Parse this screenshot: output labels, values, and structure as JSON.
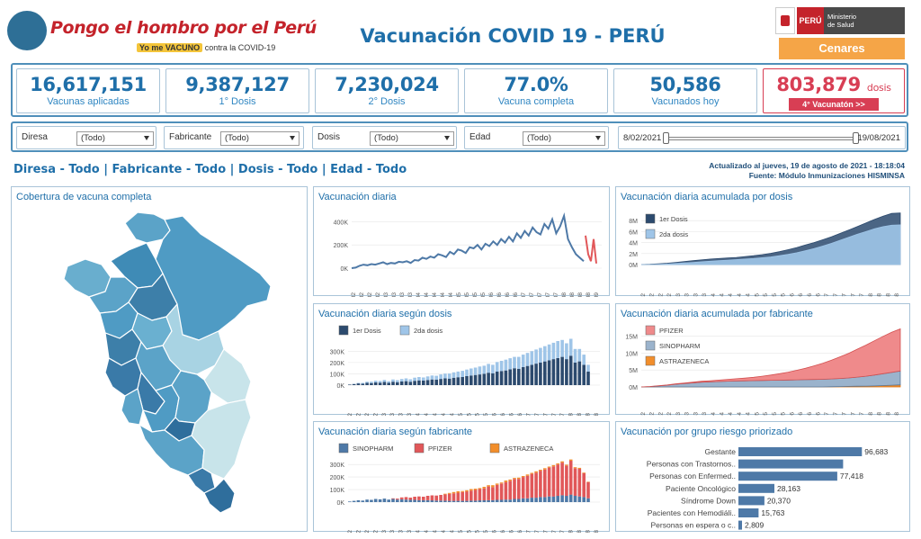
{
  "header": {
    "logo_title": "Pongo el hombro por el Perú",
    "logo_sub_highlight": "Yo me VACUNO",
    "logo_sub_rest": "contra la COVID-19",
    "title": "Vacunación COVID 19 - PERÚ",
    "ministry_peru": "PERÚ",
    "ministry_name_1": "Ministerio",
    "ministry_name_2": "de Salud",
    "cenares": "Cenares"
  },
  "kpis": [
    {
      "value": "16,617,151",
      "label": "Vacunas aplicadas"
    },
    {
      "value": "9,387,127",
      "label": "1° Dosis"
    },
    {
      "value": "7,230,024",
      "label": "2° Dosis"
    },
    {
      "value": "77.0%",
      "label": "Vacuna completa"
    },
    {
      "value": "50,586",
      "label": "Vacunados hoy"
    }
  ],
  "vacunaton": {
    "value": "803,879",
    "unit": "dosis",
    "button": "4° Vacunatón >>"
  },
  "filters": [
    {
      "label": "Diresa",
      "value": "(Todo)"
    },
    {
      "label": "Fabricante",
      "value": "(Todo)"
    },
    {
      "label": "Dosis",
      "value": "(Todo)"
    },
    {
      "label": "Edad",
      "value": "(Todo)"
    }
  ],
  "date_range": {
    "start": "8/02/2021",
    "end": "19/08/2021"
  },
  "breadcrumb": "Diresa - Todo | Fabricante - Todo | Dosis - Todo | Edad - Todo",
  "updated": {
    "line1": "Actualizado al jueves, 19 de agosto de 2021 - 18:18:04",
    "line2": "Fuente: Módulo Inmunizaciones HISMINSA"
  },
  "map": {
    "title": "Cobertura de vacuna completa"
  },
  "colors": {
    "blue_dark": "#1f6fa9",
    "line": "#4e79a7",
    "red_line": "#e15759",
    "dose1": "#2c4a6e",
    "dose2": "#9fc5e8",
    "sinopharm": "#4e79a7",
    "pfizer": "#e15759",
    "astrazeneca": "#f28e2b",
    "bar": "#4e79a7"
  },
  "x_ticks_daily": [
    "04-02",
    "12-02",
    "19-02",
    "26-02",
    "04-03",
    "11-03",
    "18-03",
    "25-03",
    "01-04",
    "08-04",
    "15-04",
    "22-04",
    "29-04",
    "06-05",
    "13-05",
    "20-05",
    "27-05",
    "03-06",
    "10-06",
    "17-06",
    "24-06",
    "01-07",
    "08-07",
    "15-07",
    "22-07",
    "29-07",
    "05-08",
    "12-08",
    "19-08",
    "26-08",
    "02-09"
  ],
  "x_ticks_stack": [
    "04-02",
    "12-02",
    "19-02",
    "26-02",
    "05-03",
    "12-03",
    "19-03",
    "26-03",
    "02-04",
    "09-04",
    "16-04",
    "23-04",
    "30-04",
    "07-05",
    "14-05",
    "21-05",
    "28-05",
    "04-06",
    "11-06",
    "18-06",
    "25-06",
    "02-07",
    "09-07",
    "16-07",
    "23-07",
    "30-07",
    "06-08",
    "13-08",
    "20-08",
    "27-08"
  ],
  "x_ticks_cum": [
    "04-02",
    "11-02",
    "18-02",
    "25-02",
    "04-03",
    "11-03",
    "18-03",
    "25-03",
    "01-04",
    "08-04",
    "15-04",
    "22-04",
    "29-04",
    "06-05",
    "13-05",
    "20-05",
    "27-05",
    "03-06",
    "10-06",
    "17-06",
    "24-06",
    "01-07",
    "08-07",
    "15-07",
    "22-07",
    "29-07",
    "05-08",
    "12-08",
    "19-08",
    "26-08"
  ],
  "chart_data": [
    {
      "type": "line",
      "title": "Vacunación diaria",
      "ylim": [
        0,
        480000
      ],
      "yticks": [
        "0K",
        "200K",
        "400K"
      ],
      "x_range": [
        "04-02",
        "02-09"
      ],
      "series": [
        {
          "values": [
            0,
            5000,
            20000,
            30000,
            25000,
            35000,
            30000,
            40000,
            50000,
            35000,
            45000,
            40000,
            55000,
            50000,
            60000,
            45000,
            70000,
            65000,
            90000,
            80000,
            100000,
            90000,
            120000,
            110000,
            95000,
            140000,
            120000,
            160000,
            150000,
            130000,
            180000,
            170000,
            200000,
            160000,
            210000,
            190000,
            230000,
            200000,
            250000,
            220000,
            270000,
            230000,
            300000,
            260000,
            320000,
            280000,
            350000,
            310000,
            290000,
            380000,
            340000,
            420000,
            300000,
            360000,
            450000,
            250000,
            180000,
            120000,
            90000,
            60000
          ]
        },
        {
          "values": [
            280000,
            120000,
            60000,
            250000,
            40000
          ]
        }
      ]
    },
    {
      "type": "area",
      "title": "Vacunación diaria acumulada por dosis",
      "ylim": [
        0,
        9500000
      ],
      "yticks": [
        "0M",
        "2M",
        "4M",
        "6M",
        "8M"
      ],
      "legend": [
        "1er Dosis",
        "2da dosis"
      ],
      "series": [
        {
          "name": "1er Dosis",
          "values": [
            0,
            50000,
            150000,
            250000,
            400000,
            550000,
            700000,
            850000,
            1000000,
            1100000,
            1200000,
            1300000,
            1450000,
            1600000,
            1800000,
            2050000,
            2350000,
            2700000,
            3100000,
            3550000,
            4000000,
            4500000,
            5050000,
            5650000,
            6250000,
            6900000,
            7550000,
            8200000,
            8800000,
            9300000,
            9387127
          ]
        },
        {
          "name": "2da dosis",
          "values": [
            0,
            0,
            30000,
            100000,
            200000,
            300000,
            400000,
            500000,
            600000,
            700000,
            800000,
            900000,
            1000000,
            1100000,
            1250000,
            1400000,
            1600000,
            1850000,
            2150000,
            2500000,
            2900000,
            3350000,
            3850000,
            4400000,
            4950000,
            5500000,
            6000000,
            6500000,
            6900000,
            7150000,
            7230024
          ]
        }
      ]
    },
    {
      "type": "bar",
      "title": "Vacunación diaria según dosis",
      "ylim": [
        0,
        430000
      ],
      "yticks": [
        "0K",
        "100K",
        "200K",
        "300K"
      ],
      "legend": [
        "1er Dosis",
        "2da dosis"
      ],
      "series": [
        {
          "name": "1er Dosis",
          "values": [
            5000,
            10000,
            15000,
            12000,
            20000,
            18000,
            25000,
            22000,
            28000,
            20000,
            30000,
            26000,
            32000,
            35000,
            30000,
            38000,
            42000,
            40000,
            45000,
            50000,
            48000,
            55000,
            60000,
            58000,
            65000,
            70000,
            72000,
            80000,
            85000,
            90000,
            95000,
            100000,
            110000,
            105000,
            120000,
            125000,
            130000,
            140000,
            150000,
            145000,
            160000,
            170000,
            180000,
            190000,
            200000,
            210000,
            220000,
            230000,
            240000,
            250000,
            230000,
            260000,
            200000,
            210000,
            180000,
            120000
          ]
        },
        {
          "name": "2da dosis",
          "values": [
            0,
            2000,
            5000,
            8000,
            10000,
            12000,
            15000,
            15000,
            18000,
            14000,
            20000,
            18000,
            22000,
            25000,
            22000,
            28000,
            30000,
            28000,
            32000,
            35000,
            35000,
            40000,
            42000,
            45000,
            48000,
            50000,
            55000,
            58000,
            62000,
            65000,
            70000,
            72000,
            78000,
            75000,
            85000,
            90000,
            95000,
            98000,
            100000,
            105000,
            110000,
            115000,
            120000,
            125000,
            130000,
            135000,
            140000,
            145000,
            150000,
            150000,
            140000,
            150000,
            120000,
            110000,
            90000,
            60000
          ]
        }
      ]
    },
    {
      "type": "area",
      "title": "Vacunación diaria acumulada por fabricante",
      "ylim": [
        0,
        17500000
      ],
      "yticks": [
        "0M",
        "5M",
        "10M",
        "15M"
      ],
      "legend": [
        "PFIZER",
        "SINOPHARM",
        "ASTRAZENECA"
      ],
      "series": [
        {
          "name": "PFIZER",
          "values": [
            0,
            20000,
            50000,
            80000,
            120000,
            160000,
            200000,
            260000,
            330000,
            420000,
            520000,
            650000,
            800000,
            1000000,
            1250000,
            1550000,
            1900000,
            2300000,
            2800000,
            3350000,
            4000000,
            4700000,
            5500000,
            6350000,
            7250000,
            8200000,
            9150000,
            10100000,
            11000000,
            11800000,
            12400000
          ]
        },
        {
          "name": "SINOPHARM",
          "values": [
            0,
            100000,
            300000,
            500000,
            800000,
            1000000,
            1200000,
            1400000,
            1500000,
            1600000,
            1700000,
            1750000,
            1800000,
            1850000,
            1900000,
            1950000,
            2000000,
            2050000,
            2100000,
            2150000,
            2200000,
            2250000,
            2300000,
            2400000,
            2500000,
            2700000,
            2900000,
            3200000,
            3500000,
            3800000,
            4100000
          ]
        },
        {
          "name": "ASTRAZENECA",
          "values": [
            0,
            0,
            0,
            0,
            0,
            0,
            0,
            0,
            0,
            0,
            0,
            0,
            0,
            0,
            0,
            0,
            0,
            0,
            0,
            0,
            0,
            0,
            50000,
            100000,
            150000,
            200000,
            250000,
            300000,
            400000,
            500000,
            600000
          ]
        }
      ]
    },
    {
      "type": "bar",
      "title": "Vacunación diaria según fabricante",
      "ylim": [
        0,
        380000
      ],
      "yticks": [
        "0K",
        "100K",
        "200K",
        "300K"
      ],
      "legend": [
        "SINOPHARM",
        "PFIZER",
        "ASTRAZENECA"
      ],
      "series": [
        {
          "name": "SINOPHARM",
          "values": [
            5000,
            10000,
            15000,
            12000,
            20000,
            18000,
            25000,
            22000,
            28000,
            20000,
            25000,
            20000,
            22000,
            20000,
            18000,
            18000,
            15000,
            15000,
            15000,
            14000,
            12000,
            12000,
            12000,
            10000,
            10000,
            10000,
            10000,
            10000,
            12000,
            12000,
            14000,
            15000,
            15000,
            15000,
            18000,
            18000,
            20000,
            20000,
            25000,
            25000,
            30000,
            30000,
            35000,
            35000,
            40000,
            40000,
            45000,
            45000,
            50000,
            55000,
            50000,
            60000,
            50000,
            45000,
            40000,
            30000
          ]
        },
        {
          "name": "PFIZER",
          "values": [
            0,
            0,
            0,
            0,
            0,
            0,
            0,
            0,
            0,
            0,
            5000,
            8000,
            15000,
            20000,
            18000,
            25000,
            30000,
            28000,
            35000,
            40000,
            40000,
            45000,
            50000,
            55000,
            60000,
            65000,
            70000,
            75000,
            80000,
            85000,
            90000,
            95000,
            110000,
            105000,
            120000,
            130000,
            140000,
            150000,
            160000,
            160000,
            170000,
            180000,
            190000,
            200000,
            210000,
            220000,
            230000,
            240000,
            250000,
            260000,
            240000,
            270000,
            220000,
            220000,
            190000,
            130000
          ]
        },
        {
          "name": "ASTRAZENECA",
          "values": [
            0,
            0,
            0,
            0,
            0,
            0,
            0,
            0,
            0,
            0,
            0,
            0,
            0,
            0,
            0,
            0,
            0,
            0,
            0,
            0,
            0,
            0,
            5000,
            8000,
            10000,
            12000,
            8000,
            10000,
            12000,
            10000,
            8000,
            12000,
            10000,
            15000,
            10000,
            8000,
            12000,
            10000,
            8000,
            10000,
            8000,
            10000,
            8000,
            10000,
            8000,
            10000,
            8000,
            10000,
            8000,
            10000,
            8000,
            10000,
            8000,
            8000,
            5000,
            3000
          ]
        }
      ]
    },
    {
      "type": "bar",
      "orientation": "horizontal",
      "title": "Vacunación por grupo riesgo priorizado",
      "categories": [
        "Gestante",
        "Personas con Trastornos..",
        "Personas con Enfermed..",
        "Paciente Oncológico",
        "Síndrome Down",
        "Pacientes con Hemodiáli..",
        "Personas en espera o c.."
      ],
      "values": [
        96683,
        82000,
        77418,
        28163,
        20370,
        15763,
        2809
      ],
      "labels": [
        "96,683",
        "",
        "77,418",
        "28,163",
        "20,370",
        "15,763",
        "2,809"
      ]
    }
  ]
}
